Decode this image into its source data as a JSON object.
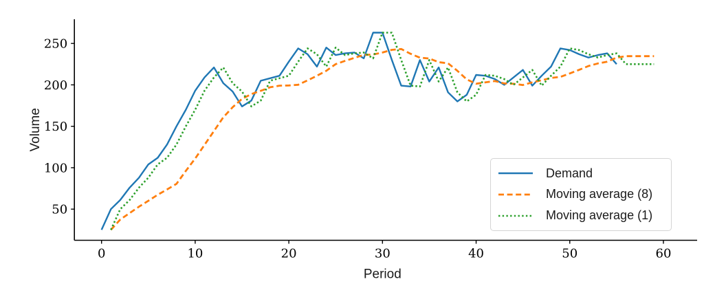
{
  "figure": {
    "background": "#ffffff"
  },
  "chart_data": {
    "type": "line",
    "title": "",
    "xlabel": "Period",
    "ylabel": "Volume",
    "grid": false,
    "legend_position": "lower right",
    "x_ticks": [
      0,
      10,
      20,
      30,
      40,
      50,
      60
    ],
    "y_ticks": [
      50,
      100,
      150,
      200,
      250
    ],
    "xlim": [
      -2.9,
      63.6
    ],
    "ylim": [
      12.4,
      279.2
    ],
    "series": [
      {
        "name": "Demand",
        "color": "#1f77b4",
        "style": "solid",
        "x_start": 0,
        "values": [
          25,
          50,
          61,
          76,
          88,
          104,
          112,
          128,
          150,
          170,
          193,
          209,
          221,
          202,
          192,
          174,
          181,
          205,
          208,
          211,
          228,
          244,
          237,
          222,
          245,
          236,
          238,
          239,
          232,
          263,
          263,
          230,
          199,
          198,
          230,
          204,
          221,
          191,
          180,
          188,
          212,
          211,
          207,
          200,
          209,
          218,
          199,
          211,
          222,
          244,
          242,
          237,
          233,
          236,
          238,
          225
        ]
      },
      {
        "name": "Moving average (8)",
        "color": "#ff7f0e",
        "style": "dashed",
        "x_start": 1,
        "values": [
          25,
          37.5,
          45.3,
          53,
          60,
          67.3,
          73.7,
          80.5,
          96.1,
          111.1,
          127.6,
          144.3,
          160.9,
          173.1,
          183.1,
          188.9,
          192.8,
          197.1,
          199,
          199.3,
          200.1,
          205.4,
          211,
          217,
          225,
          228.9,
          232.6,
          236.1,
          236.6,
          239,
          242.3,
          243.3,
          237.5,
          232.8,
          231.8,
          227.4,
          226,
          217,
          206.6,
          201.4,
          203,
          204.6,
          201.8,
          201.3,
          199.8,
          203.1,
          205.5,
          208.4,
          209.6,
          213.8,
          218.1,
          222.8,
          225.8,
          228,
          232.9,
          234.6,
          234.6,
          234.6,
          234.6
        ]
      },
      {
        "name": "Moving average (1)",
        "color": "#2ca02c",
        "style": "dotted",
        "x_start": 1,
        "values": [
          25,
          50,
          61,
          76,
          88,
          104,
          112,
          128,
          150,
          170,
          193,
          209,
          221,
          202,
          192,
          174,
          181,
          205,
          208,
          211,
          228,
          244,
          237,
          222,
          245,
          236,
          238,
          239,
          232,
          263,
          263,
          230,
          199,
          198,
          230,
          204,
          221,
          191,
          180,
          188,
          212,
          211,
          207,
          200,
          209,
          218,
          199,
          211,
          222,
          244,
          242,
          237,
          233,
          236,
          238,
          225,
          225,
          225,
          225
        ]
      }
    ]
  }
}
